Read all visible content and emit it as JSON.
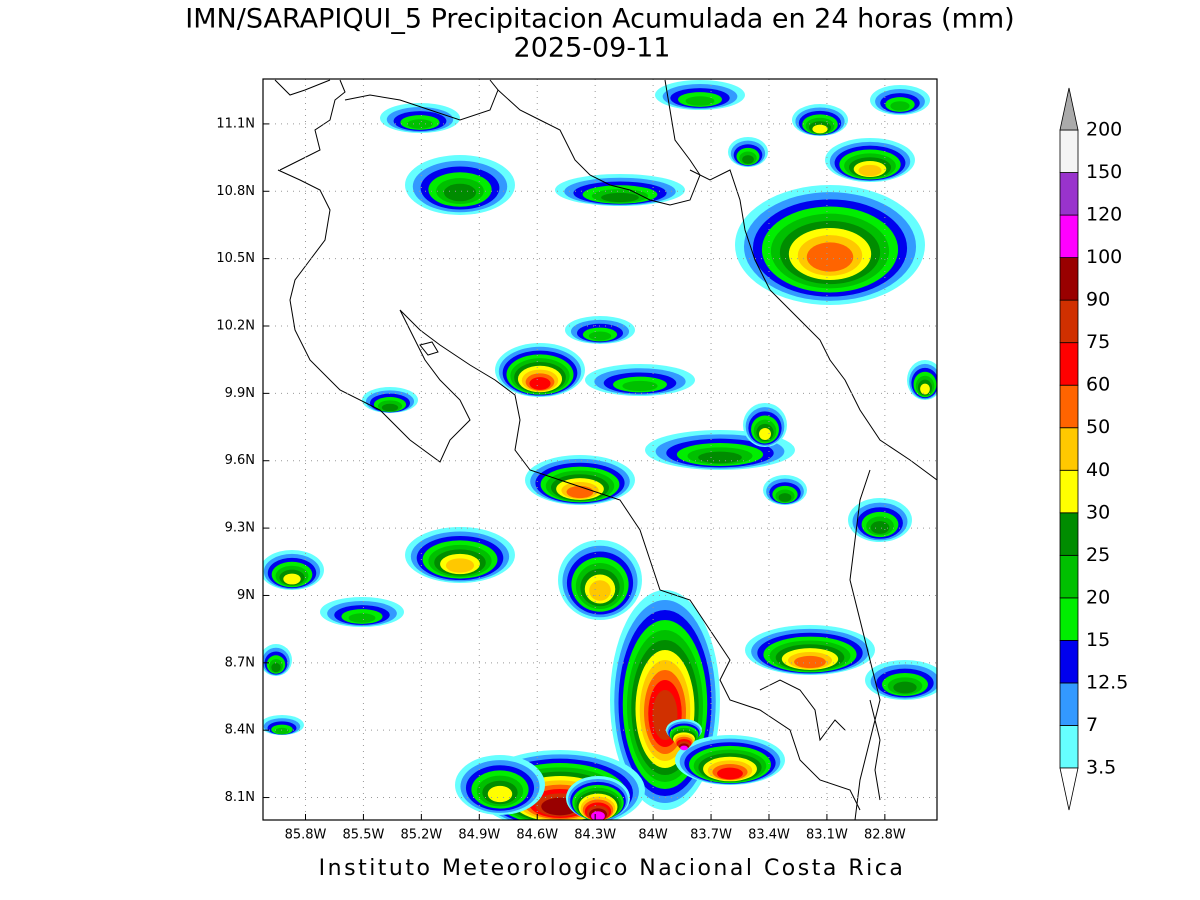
{
  "title": "IMN/SARAPIQUI_5 Precipitacion Acumulada en 24 horas (mm)",
  "subtitle": "2025-09-11",
  "map": {
    "lonlim": [
      -86.02,
      -82.53
    ],
    "latlim": [
      8.0,
      11.3
    ],
    "grid": true,
    "lon_ticks": [
      {
        "value": -85.8,
        "label": "85.8W"
      },
      {
        "value": -85.5,
        "label": "85.5W"
      },
      {
        "value": -85.2,
        "label": "85.2W"
      },
      {
        "value": -84.9,
        "label": "84.9W"
      },
      {
        "value": -84.6,
        "label": "84.6W"
      },
      {
        "value": -84.3,
        "label": "84.3W"
      },
      {
        "value": -84.0,
        "label": "84W"
      },
      {
        "value": -83.7,
        "label": "83.7W"
      },
      {
        "value": -83.4,
        "label": "83.4W"
      },
      {
        "value": -83.1,
        "label": "83.1W"
      },
      {
        "value": -82.8,
        "label": "82.8W"
      }
    ],
    "lat_ticks": [
      {
        "value": 8.1,
        "label": "8.1N"
      },
      {
        "value": 8.4,
        "label": "8.4N"
      },
      {
        "value": 8.7,
        "label": "8.7N"
      },
      {
        "value": 9.0,
        "label": "9N"
      },
      {
        "value": 9.3,
        "label": "9.3N"
      },
      {
        "value": 9.6,
        "label": "9.6N"
      },
      {
        "value": 9.9,
        "label": "9.9N"
      },
      {
        "value": 10.2,
        "label": "10.2N"
      },
      {
        "value": 10.5,
        "label": "10.5N"
      },
      {
        "value": 10.8,
        "label": "10.8N"
      },
      {
        "value": 11.1,
        "label": "11.1N"
      }
    ]
  },
  "colorbar": {
    "levels": [
      3.5,
      7,
      12.5,
      15,
      20,
      25,
      30,
      40,
      50,
      60,
      75,
      90,
      100,
      120,
      150,
      200
    ],
    "colors": [
      "#66ffff",
      "#3399ff",
      "#0000ee",
      "#00ee00",
      "#00c000",
      "#008c00",
      "#ffff00",
      "#ffc800",
      "#ff6400",
      "#ff0000",
      "#d03000",
      "#990000",
      "#ff00ff",
      "#9933cc",
      "#f4f4f4"
    ],
    "under_color": "#ffffff",
    "over_color": "#aaaaaa"
  },
  "footer": "Instituto Meteorologico Nacional Costa Rica"
}
